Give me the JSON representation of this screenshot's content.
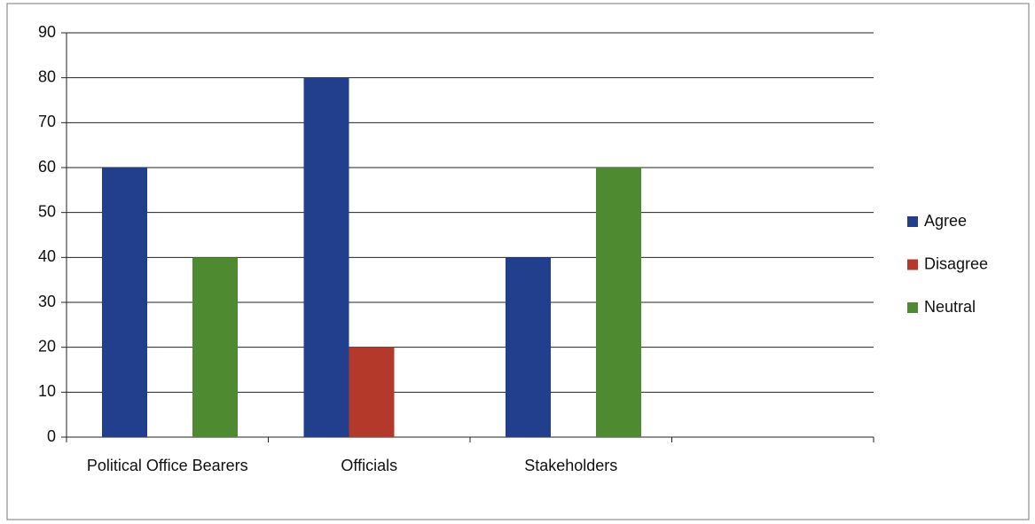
{
  "chart_data": {
    "type": "bar",
    "categories": [
      "Political Office Bearers",
      "Officials",
      "Stakeholders",
      null
    ],
    "series": [
      {
        "name": "Agree",
        "color": "#213f8c",
        "values": [
          60,
          80,
          40,
          null
        ]
      },
      {
        "name": "Disagree",
        "color": "#b5392a",
        "values": [
          0,
          20,
          0,
          null
        ]
      },
      {
        "name": "Neutral",
        "color": "#4e8a2f",
        "values": [
          40,
          0,
          60,
          null
        ]
      }
    ],
    "ylim": [
      0,
      90
    ],
    "yticks": [
      0,
      10,
      20,
      30,
      40,
      50,
      60,
      70,
      80,
      90
    ],
    "grid": true,
    "legend": "right"
  }
}
